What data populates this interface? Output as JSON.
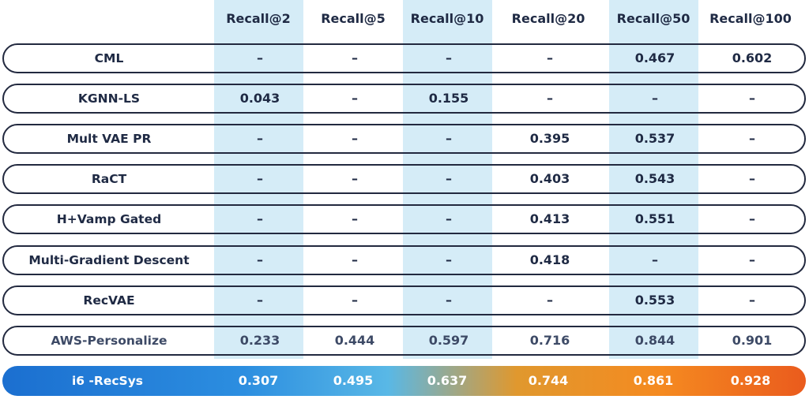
{
  "chart_data": {
    "type": "table",
    "columns": [
      "Recall@2",
      "Recall@5",
      "Recall@10",
      "Recall@20",
      "Recall@50",
      "Recall@100"
    ],
    "highlighted_columns": [
      0,
      2,
      4
    ],
    "rows": [
      {
        "name": "CML",
        "values": [
          "–",
          "–",
          "–",
          "–",
          "0.467",
          "0.602"
        ]
      },
      {
        "name": "KGNN-LS",
        "values": [
          "0.043",
          "–",
          "0.155",
          "–",
          "–",
          "–"
        ]
      },
      {
        "name": "Mult VAE PR",
        "values": [
          "–",
          "–",
          "–",
          "0.395",
          "0.537",
          "–"
        ]
      },
      {
        "name": "RaCT",
        "values": [
          "–",
          "–",
          "–",
          "0.403",
          "0.543",
          "–"
        ]
      },
      {
        "name": "H+Vamp Gated",
        "values": [
          "–",
          "–",
          "–",
          "0.413",
          "0.551",
          "–"
        ]
      },
      {
        "name": "Multi-Gradient Descent",
        "values": [
          "–",
          "–",
          "–",
          "0.418",
          "–",
          "–"
        ]
      },
      {
        "name": "RecVAE",
        "values": [
          "–",
          "–",
          "–",
          "–",
          "0.553",
          "–"
        ]
      },
      {
        "name": "AWS-Personalize",
        "values": [
          "0.233",
          "0.444",
          "0.597",
          "0.716",
          "0.844",
          "0.901"
        ],
        "style": "muted"
      },
      {
        "name": "i6 -RecSys",
        "values": [
          "0.307",
          "0.495",
          "0.637",
          "0.744",
          "0.861",
          "0.928"
        ],
        "style": "highlight"
      }
    ],
    "colors": {
      "column_highlight": "#d5ecf7",
      "row_border": "#22293f",
      "gradient": [
        "#1b6fd0",
        "#2c8ee0",
        "#59b8e6",
        "#e0982e",
        "#f58a20",
        "#ea5b1d"
      ]
    }
  }
}
